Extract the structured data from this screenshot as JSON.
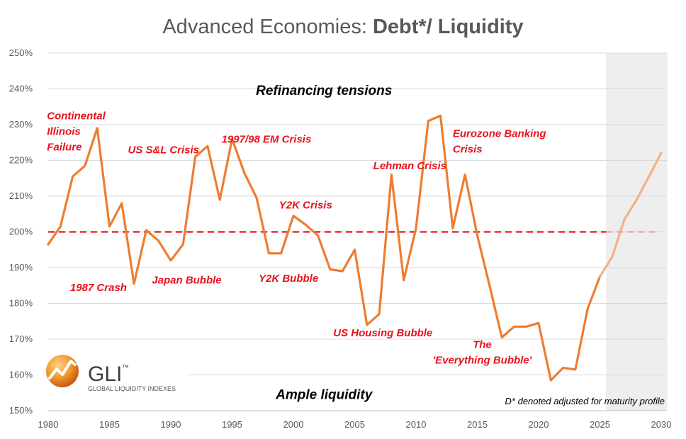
{
  "title_regular": "Advanced Economies: ",
  "title_bold": "Debt*/ Liquidity",
  "logo": {
    "name": "GLI",
    "sub": "GLOBAL LIQUIDITY INDEXES",
    "tm": "™"
  },
  "footnote": "D* denoted adjusted for maturity profile",
  "colors": {
    "actual": "#ed7d31",
    "forecast": "#f4b183",
    "reference": "#e8121e",
    "annotation": "#e8121e",
    "forecast_shade": "#eeeeee",
    "grid": "#d9d9d9"
  },
  "chart_data": {
    "type": "line",
    "ylim": [
      150,
      250
    ],
    "xlim": [
      1980,
      2030
    ],
    "y_ticks": [
      "150%",
      "160%",
      "170%",
      "180%",
      "190%",
      "200%",
      "210%",
      "220%",
      "230%",
      "240%",
      "250%"
    ],
    "x_ticks": [
      "1980",
      "1985",
      "1990",
      "1995",
      "2000",
      "2005",
      "2010",
      "2015",
      "2020",
      "2025",
      "2030"
    ],
    "forecast_region": [
      2025.5,
      2030.5
    ],
    "reference_line": 200,
    "series": [
      {
        "points": [
          [
            1980,
            196.5
          ],
          [
            1981,
            201.5
          ],
          [
            1982,
            215.5
          ],
          [
            1983,
            218.5
          ],
          [
            1984,
            229
          ],
          [
            1985,
            201.5
          ],
          [
            1986,
            208
          ],
          [
            1987,
            185.5
          ],
          [
            1988,
            200.5
          ],
          [
            1989,
            197.5
          ],
          [
            1990,
            192
          ],
          [
            1991,
            196.5
          ],
          [
            1992,
            221
          ],
          [
            1993,
            224
          ],
          [
            1994,
            209
          ],
          [
            1995,
            226
          ],
          [
            1996,
            216.5
          ],
          [
            1997,
            209.5
          ],
          [
            1998,
            194
          ],
          [
            1999,
            194
          ],
          [
            2000,
            204.5
          ],
          [
            2001,
            202
          ],
          [
            2002,
            199
          ],
          [
            2003,
            189.5
          ],
          [
            2004,
            189
          ],
          [
            2005,
            195
          ],
          [
            2006,
            174
          ],
          [
            2007,
            177
          ],
          [
            2008,
            216
          ],
          [
            2009,
            186.5
          ],
          [
            2010,
            201
          ],
          [
            2011,
            231
          ],
          [
            2012,
            232.5
          ],
          [
            2013,
            201
          ],
          [
            2014,
            216
          ],
          [
            2015,
            199
          ],
          [
            2016,
            185
          ],
          [
            2017,
            170.5
          ],
          [
            2018,
            173.5
          ],
          [
            2019,
            173.5
          ],
          [
            2020,
            174.5
          ],
          [
            2021,
            158.5
          ],
          [
            2022,
            162
          ],
          [
            2023,
            161.5
          ],
          [
            2024,
            178.5
          ],
          [
            2025,
            187.5
          ]
        ]
      },
      {
        "points": [
          [
            2025,
            187.5
          ],
          [
            2026,
            193
          ],
          [
            2027,
            203.5
          ],
          [
            2028,
            209
          ],
          [
            2029,
            215.5
          ],
          [
            2030,
            222
          ]
        ]
      }
    ],
    "zones": [
      {
        "text": "Refinancing tensions",
        "x": 2002.5,
        "y": 239.5
      },
      {
        "text": "Ample liquidity",
        "x": 2002.5,
        "y": 154.5
      }
    ],
    "annotations": [
      {
        "lines": [
          "Continental",
          "Illinois",
          "Failure"
        ],
        "x": 1979.9,
        "y": 231.5,
        "anchor": "start"
      },
      {
        "lines": [
          "US S&L Crisis"
        ],
        "x": 1986.5,
        "y": 222,
        "anchor": "start"
      },
      {
        "lines": [
          "1997/98 EM Crisis"
        ],
        "x": 1997.8,
        "y": 225,
        "anchor": "middle"
      },
      {
        "lines": [
          "Y2K Crisis"
        ],
        "x": 2001,
        "y": 206.5,
        "anchor": "middle"
      },
      {
        "lines": [
          "Lehman Crisis"
        ],
        "x": 2009.5,
        "y": 217.5,
        "anchor": "middle"
      },
      {
        "lines": [
          "Eurozone Banking",
          "Crisis"
        ],
        "x": 2013,
        "y": 226.5,
        "anchor": "start"
      },
      {
        "lines": [
          "1987 Crash"
        ],
        "x": 1984.1,
        "y": 183.5,
        "anchor": "middle"
      },
      {
        "lines": [
          "Japan Bubble"
        ],
        "x": 1991.3,
        "y": 185.5,
        "anchor": "middle"
      },
      {
        "lines": [
          "Y2K Bubble"
        ],
        "x": 1999.6,
        "y": 186,
        "anchor": "middle"
      },
      {
        "lines": [
          "US Housing Bubble"
        ],
        "x": 2007.3,
        "y": 170.8,
        "anchor": "middle"
      },
      {
        "lines": [
          "The",
          "'Everything Bubble'"
        ],
        "x": 2015.4,
        "y": 167.5,
        "anchor": "middle"
      }
    ]
  }
}
